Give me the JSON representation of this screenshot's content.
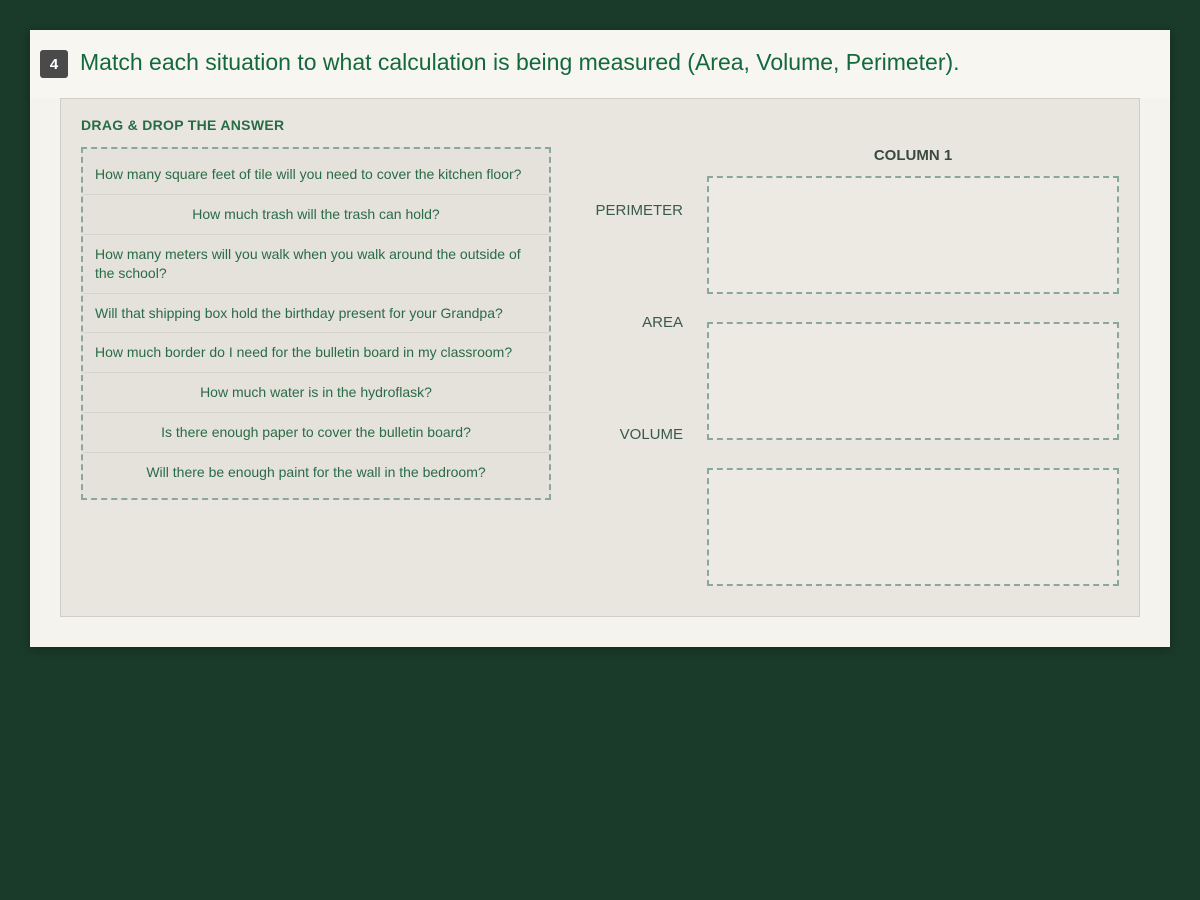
{
  "colors": {
    "outer_background": "#1a3a2a",
    "page_background": "#f5f3ee",
    "panel_background": "#e8e6df",
    "dashed_border": "#8aa89a",
    "question_text": "#14683e",
    "answer_text": "#2a6b47",
    "badge_bg": "#4a4a4a"
  },
  "question": {
    "number": "4",
    "prompt": "Match each situation to what calculation is being measured (Area, Volume, Perimeter)."
  },
  "panel": {
    "title": "DRAG & DROP THE ANSWER"
  },
  "answers": [
    {
      "text": "How many square feet of tile will you need to cover the kitchen floor?",
      "align": "left"
    },
    {
      "text": "How much trash will the trash can hold?",
      "align": "center"
    },
    {
      "text": "How many meters will you walk when you walk around the outside of the school?",
      "align": "left"
    },
    {
      "text": "Will that shipping box hold the birthday present for your Grandpa?",
      "align": "left"
    },
    {
      "text": "How much border do I need for the bulletin board in my classroom?",
      "align": "left"
    },
    {
      "text": "How much water is in the hydroflask?",
      "align": "center"
    },
    {
      "text": "Is there enough paper to cover the bulletin board?",
      "align": "center"
    },
    {
      "text": "Will there be enough paint for the wall in the bedroom?",
      "align": "center"
    }
  ],
  "row_labels": [
    "PERIMETER",
    "AREA",
    "VOLUME"
  ],
  "column_header": "COLUMN 1"
}
